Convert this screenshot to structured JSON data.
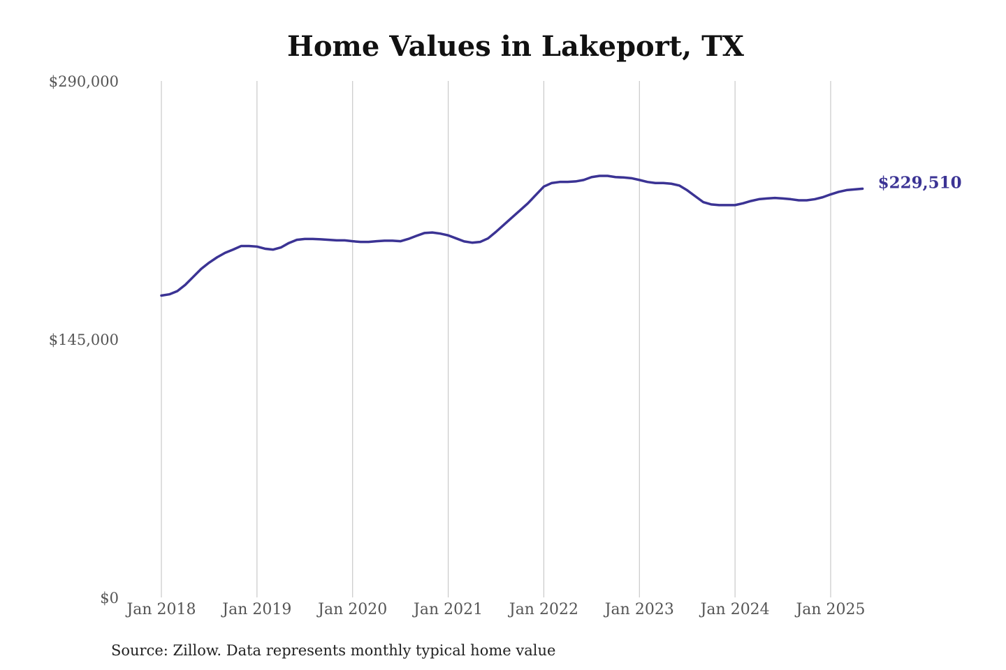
{
  "chart_data": {
    "type": "line",
    "title": "Home Values in Lakeport, TX",
    "ylim": [
      0,
      290000
    ],
    "yticks": [
      0,
      145000,
      290000
    ],
    "ytick_labels": [
      "$0",
      "$145,000",
      "$290,000"
    ],
    "xticks": [
      2018,
      2019,
      2020,
      2021,
      2022,
      2023,
      2024,
      2025
    ],
    "xtick_labels": [
      "Jan 2018",
      "Jan 2019",
      "Jan 2020",
      "Jan 2021",
      "Jan 2022",
      "Jan 2023",
      "Jan 2024",
      "Jan 2025"
    ],
    "grid": "vertical",
    "series": [
      {
        "color": "#3b3394",
        "points": [
          [
            "2018-01",
            169500
          ],
          [
            "2018-02",
            170200
          ],
          [
            "2018-03",
            172000
          ],
          [
            "2018-04",
            175500
          ],
          [
            "2018-05",
            180000
          ],
          [
            "2018-06",
            184500
          ],
          [
            "2018-07",
            188000
          ],
          [
            "2018-08",
            191000
          ],
          [
            "2018-09",
            193500
          ],
          [
            "2018-10",
            195300
          ],
          [
            "2018-11",
            197300
          ],
          [
            "2018-12",
            197300
          ],
          [
            "2019-01",
            197000
          ],
          [
            "2019-02",
            195800
          ],
          [
            "2019-03",
            195300
          ],
          [
            "2019-04",
            196500
          ],
          [
            "2019-05",
            199000
          ],
          [
            "2019-06",
            200800
          ],
          [
            "2019-07",
            201300
          ],
          [
            "2019-08",
            201300
          ],
          [
            "2019-09",
            201100
          ],
          [
            "2019-10",
            200800
          ],
          [
            "2019-11",
            200500
          ],
          [
            "2019-12",
            200500
          ],
          [
            "2020-01",
            200000
          ],
          [
            "2020-02",
            199600
          ],
          [
            "2020-03",
            199600
          ],
          [
            "2020-04",
            200000
          ],
          [
            "2020-05",
            200300
          ],
          [
            "2020-06",
            200300
          ],
          [
            "2020-07",
            200000
          ],
          [
            "2020-08",
            201300
          ],
          [
            "2020-09",
            203000
          ],
          [
            "2020-10",
            204600
          ],
          [
            "2020-11",
            204900
          ],
          [
            "2020-12",
            204300
          ],
          [
            "2021-01",
            203300
          ],
          [
            "2021-02",
            201600
          ],
          [
            "2021-03",
            199900
          ],
          [
            "2021-04",
            199200
          ],
          [
            "2021-05",
            199600
          ],
          [
            "2021-06",
            201600
          ],
          [
            "2021-07",
            205300
          ],
          [
            "2021-08",
            209300
          ],
          [
            "2021-09",
            213300
          ],
          [
            "2021-10",
            217300
          ],
          [
            "2021-11",
            221300
          ],
          [
            "2021-12",
            226000
          ],
          [
            "2022-01",
            230700
          ],
          [
            "2022-02",
            232700
          ],
          [
            "2022-03",
            233300
          ],
          [
            "2022-04",
            233300
          ],
          [
            "2022-05",
            233600
          ],
          [
            "2022-06",
            234400
          ],
          [
            "2022-07",
            236000
          ],
          [
            "2022-08",
            236700
          ],
          [
            "2022-09",
            236700
          ],
          [
            "2022-10",
            236000
          ],
          [
            "2022-11",
            235800
          ],
          [
            "2022-12",
            235400
          ],
          [
            "2023-01",
            234400
          ],
          [
            "2023-02",
            233300
          ],
          [
            "2023-03",
            232700
          ],
          [
            "2023-04",
            232700
          ],
          [
            "2023-05",
            232300
          ],
          [
            "2023-06",
            231300
          ],
          [
            "2023-07",
            228600
          ],
          [
            "2023-08",
            225300
          ],
          [
            "2023-09",
            222000
          ],
          [
            "2023-10",
            220700
          ],
          [
            "2023-11",
            220300
          ],
          [
            "2023-12",
            220300
          ],
          [
            "2024-01",
            220300
          ],
          [
            "2024-02",
            221300
          ],
          [
            "2024-03",
            222600
          ],
          [
            "2024-04",
            223600
          ],
          [
            "2024-05",
            224000
          ],
          [
            "2024-06",
            224300
          ],
          [
            "2024-07",
            224000
          ],
          [
            "2024-08",
            223600
          ],
          [
            "2024-09",
            223000
          ],
          [
            "2024-10",
            223000
          ],
          [
            "2024-11",
            223600
          ],
          [
            "2024-12",
            224700
          ],
          [
            "2025-01",
            226300
          ],
          [
            "2025-02",
            227700
          ],
          [
            "2025-03",
            228700
          ],
          [
            "2025-04",
            229100
          ],
          [
            "2025-05",
            229510
          ]
        ],
        "end_label": "$229,510"
      }
    ]
  },
  "source_note": "Source: Zillow. Data represents monthly typical home value"
}
